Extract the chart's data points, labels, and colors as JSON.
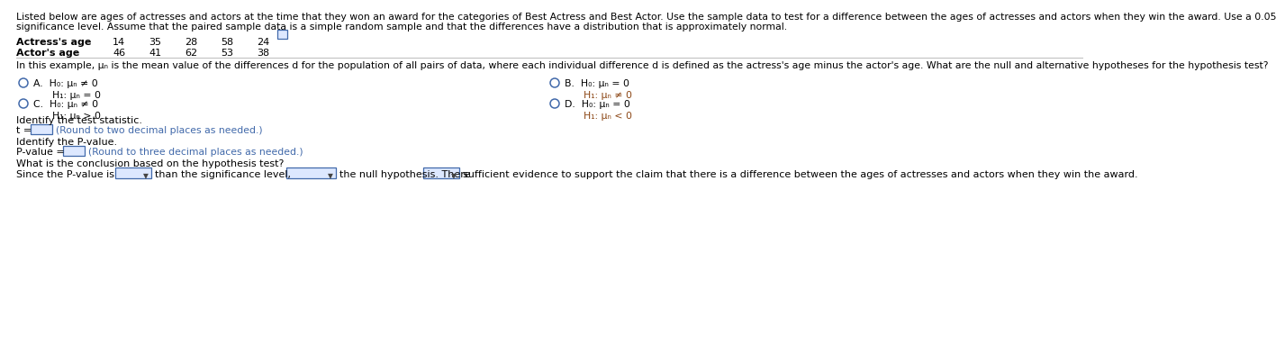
{
  "bg_color": "#ffffff",
  "text_color": "#000000",
  "blue_color": "#4169aa",
  "brown_color": "#8B4513",
  "header_line1": "Listed below are ages of actresses and actors at the time that they won an award for the categories of Best Actress and Best Actor. Use the sample data to test for a difference between the ages of actresses and actors when they win the award. Use a 0.05",
  "header_line2": "significance level. Assume that the paired sample data is a simple random sample and that the differences have a distribution that is approximately normal.",
  "actress_label": "Actress's age",
  "actress_ages": [
    "14",
    "35",
    "28",
    "58",
    "24"
  ],
  "actor_label": "Actor's age",
  "actor_ages": [
    "46",
    "41",
    "62",
    "53",
    "38"
  ],
  "question_text": "In this example, μₙ is the mean value of the differences d for the population of all pairs of data, where each individual difference d is defined as the actress's age minus the actor's age. What are the null and alternative hypotheses for the hypothesis test?",
  "optA_h0": "H₀: μₙ ≠ 0",
  "optA_h1": "H₁: μₙ = 0",
  "optB_h0": "H₀: μₙ = 0",
  "optB_h1": "H₁: μₙ ≠ 0",
  "optC_h0": "H₀: μₙ ≠ 0",
  "optC_h1": "H₁: μₙ > 0",
  "optD_h0": "H₀: μₙ = 0",
  "optD_h1": "H₁: μₙ < 0",
  "test_stat_label": "Identify the test statistic.",
  "t_label": "t =",
  "t_hint": "(Round to two decimal places as needed.)",
  "pvalue_label": "Identify the P-value.",
  "pvalue_prefix": "P-value =",
  "pvalue_hint": "(Round to three decimal places as needed.)",
  "conclusion_label": "What is the conclusion based on the hypothesis test?",
  "conc_p1": "Since the P-value is",
  "conc_p2": "than the significance level,",
  "conc_p3": "the null hypothesis. There",
  "conc_p4": "sufficient evidence to support the claim that there is a difference between the ages of actresses and actors when they win the award."
}
